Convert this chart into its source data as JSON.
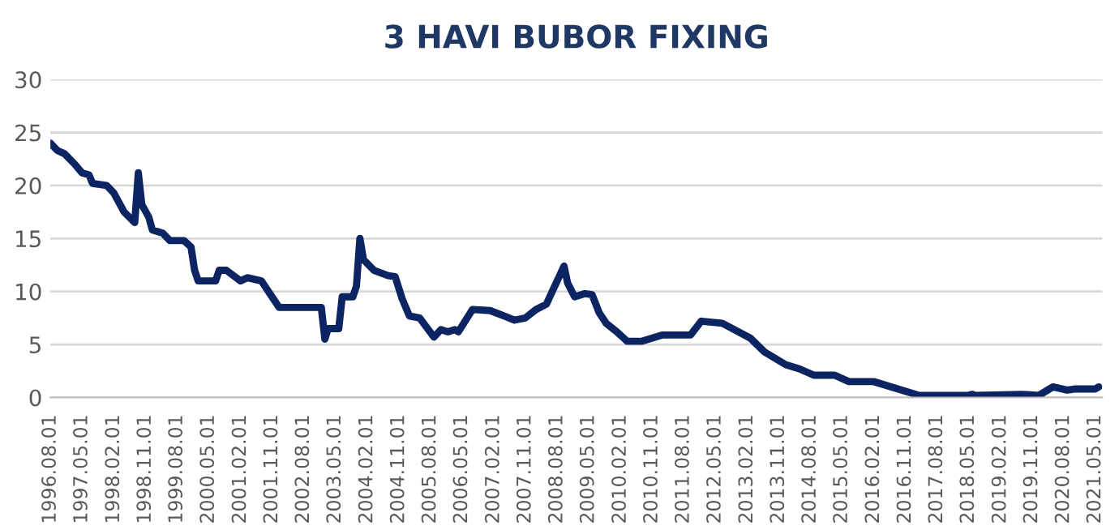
{
  "chart_data": {
    "type": "line",
    "title": "3 HAVI BUBOR FIXING",
    "x": [
      "1996-08",
      "1996-10",
      "1996-12",
      "1997-03",
      "1997-05",
      "1997-07",
      "1997-08",
      "1997-12",
      "1998-02",
      "1998-05",
      "1998-08",
      "1998-09",
      "1998-10",
      "1998-12",
      "1999-01",
      "1999-04",
      "1999-06",
      "1999-10",
      "1999-12",
      "2000-01",
      "2000-02",
      "2000-07",
      "2000-08",
      "2000-10",
      "2001-02",
      "2001-04",
      "2001-08",
      "2001-10",
      "2002-01",
      "2003-01",
      "2003-02",
      "2003-03",
      "2003-06",
      "2003-07",
      "2003-10",
      "2003-11",
      "2003-12",
      "2004-01",
      "2004-04",
      "2004-08",
      "2004-10",
      "2004-12",
      "2005-02",
      "2005-05",
      "2005-09",
      "2005-11",
      "2006-01",
      "2006-03",
      "2006-04",
      "2006-08",
      "2007-01",
      "2007-05",
      "2007-08",
      "2007-11",
      "2008-02",
      "2008-05",
      "2008-10",
      "2008-11",
      "2009-01",
      "2009-04",
      "2009-06",
      "2009-08",
      "2009-10",
      "2010-01",
      "2010-04",
      "2010-08",
      "2011-02",
      "2011-10",
      "2012-01",
      "2012-07",
      "2013-03",
      "2013-07",
      "2014-01",
      "2014-05",
      "2014-09",
      "2015-03",
      "2015-07",
      "2016-02",
      "2016-11",
      "2017-03",
      "2018-05",
      "2018-06",
      "2018-07",
      "2019-08",
      "2020-01",
      "2020-03",
      "2020-05",
      "2020-09",
      "2020-11",
      "2021-05",
      "2021-06"
    ],
    "series": [
      {
        "color": "#0c2461",
        "values": [
          24,
          23.3,
          23,
          22,
          21.2,
          21,
          20.2,
          20,
          19.3,
          17.5,
          16.5,
          21.2,
          18.2,
          17,
          15.8,
          15.5,
          14.8,
          14.8,
          14.2,
          12,
          11,
          11,
          12,
          12,
          11,
          11.3,
          11,
          10,
          8.5,
          8.5,
          5.5,
          6.5,
          6.5,
          9.5,
          9.5,
          10.5,
          15,
          13,
          12,
          11.5,
          11.4,
          9.3,
          7.7,
          7.5,
          5.7,
          6.4,
          6.2,
          6.4,
          6.2,
          8.3,
          8.2,
          7.7,
          7.3,
          7.5,
          8.3,
          8.8,
          12.4,
          10.8,
          9.5,
          9.8,
          9.7,
          8,
          7,
          6.2,
          5.3,
          5.3,
          5.9,
          5.9,
          7.2,
          7,
          5.6,
          4.3,
          3.1,
          2.7,
          2.1,
          2.1,
          1.5,
          1.5,
          0.6,
          0.2,
          0.2,
          0.3,
          0.2,
          0.3,
          0.2,
          0.6,
          1.0,
          0.7,
          0.8,
          0.8,
          1.0
        ]
      }
    ],
    "xlim": [
      "1996-08-01",
      "2021-07-01"
    ],
    "xticks": [
      {
        "value": "1996-08-01",
        "label": "1996.08.01"
      },
      {
        "value": "1997-05-01",
        "label": "1997.05.01"
      },
      {
        "value": "1998-02-01",
        "label": "1998.02.01"
      },
      {
        "value": "1998-11-01",
        "label": "1998.11.01"
      },
      {
        "value": "1999-08-01",
        "label": "1999.08.01"
      },
      {
        "value": "2000-05-01",
        "label": "2000.05.01"
      },
      {
        "value": "2001-02-01",
        "label": "2001.02.01"
      },
      {
        "value": "2001-11-01",
        "label": "2001.11.01"
      },
      {
        "value": "2002-08-01",
        "label": "2002.08.01"
      },
      {
        "value": "2003-05-01",
        "label": "2003.05.01"
      },
      {
        "value": "2004-02-01",
        "label": "2004.02.01"
      },
      {
        "value": "2004-11-01",
        "label": "2004.11.01"
      },
      {
        "value": "2005-08-01",
        "label": "2005.08.01"
      },
      {
        "value": "2006-05-01",
        "label": "2006.05.01"
      },
      {
        "value": "2007-02-01",
        "label": "2007.02.01"
      },
      {
        "value": "2007-11-01",
        "label": "2007.11.01"
      },
      {
        "value": "2008-08-01",
        "label": "2008.08.01"
      },
      {
        "value": "2009-05-01",
        "label": "2009.05.01"
      },
      {
        "value": "2010-02-01",
        "label": "2010.02.01"
      },
      {
        "value": "2010-11-01",
        "label": "2010.11.01"
      },
      {
        "value": "2011-08-01",
        "label": "2011.08.01"
      },
      {
        "value": "2012-05-01",
        "label": "2012.05.01"
      },
      {
        "value": "2013-02-01",
        "label": "2013.02.01"
      },
      {
        "value": "2013-11-01",
        "label": "2013.11.01"
      },
      {
        "value": "2014-08-01",
        "label": "2014.08.01"
      },
      {
        "value": "2015-05-01",
        "label": "2015.05.01"
      },
      {
        "value": "2016-02-01",
        "label": "2016.02.01"
      },
      {
        "value": "2016-11-01",
        "label": "2016.11.01"
      },
      {
        "value": "2017-08-01",
        "label": "2017.08.01"
      },
      {
        "value": "2018-05-01",
        "label": "2018.05.01"
      },
      {
        "value": "2019-02-01",
        "label": "2019.02.01"
      },
      {
        "value": "2019-11-01",
        "label": "2019.11.01"
      },
      {
        "value": "2020-08-01",
        "label": "2020.08.01"
      },
      {
        "value": "2021-05-01",
        "label": "2021.05.01"
      }
    ],
    "ylim": [
      0,
      30
    ],
    "yticks": [
      0,
      5,
      10,
      15,
      20,
      25,
      30
    ],
    "grid": "y",
    "legend": false,
    "marker": "none",
    "line_style": "solid"
  }
}
